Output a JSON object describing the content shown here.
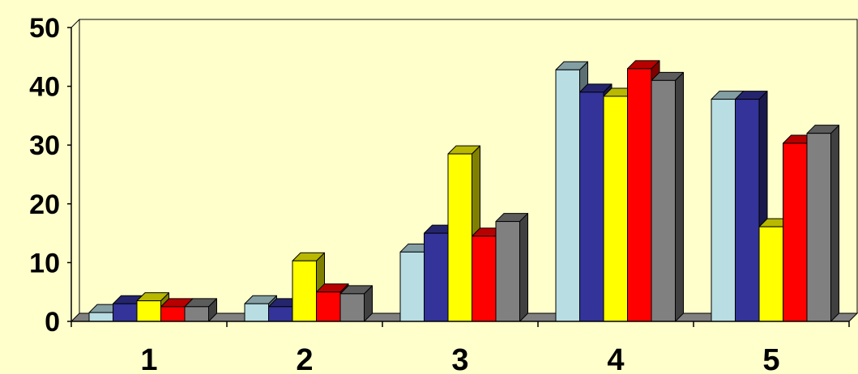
{
  "chart_data": {
    "type": "bar",
    "style": "3d-clustered-column",
    "categories": [
      "1",
      "2",
      "3",
      "4",
      "5"
    ],
    "series": [
      {
        "values": [
          1.5,
          3.0,
          11.8,
          42.8,
          37.8
        ],
        "color": "#B8DDE3"
      },
      {
        "values": [
          3.0,
          2.5,
          15.0,
          39.0,
          37.8
        ],
        "color": "#333399"
      },
      {
        "values": [
          3.5,
          10.3,
          28.5,
          38.3,
          16.1
        ],
        "color": "#FFFF00"
      },
      {
        "values": [
          2.5,
          5.0,
          14.5,
          43.0,
          30.3
        ],
        "color": "#FF0000"
      },
      {
        "values": [
          2.5,
          4.7,
          17.0,
          41.0,
          32.0
        ],
        "color": "#808080"
      }
    ],
    "ylim": [
      0,
      50
    ],
    "yticks": [
      "0",
      "10",
      "20",
      "30",
      "40",
      "50"
    ],
    "title": "",
    "xlabel": "",
    "ylabel": "",
    "legend": "none",
    "background_color": "#FFFFCC",
    "plot_area_color": "#FFFFCC",
    "floor_color": "#808080"
  }
}
